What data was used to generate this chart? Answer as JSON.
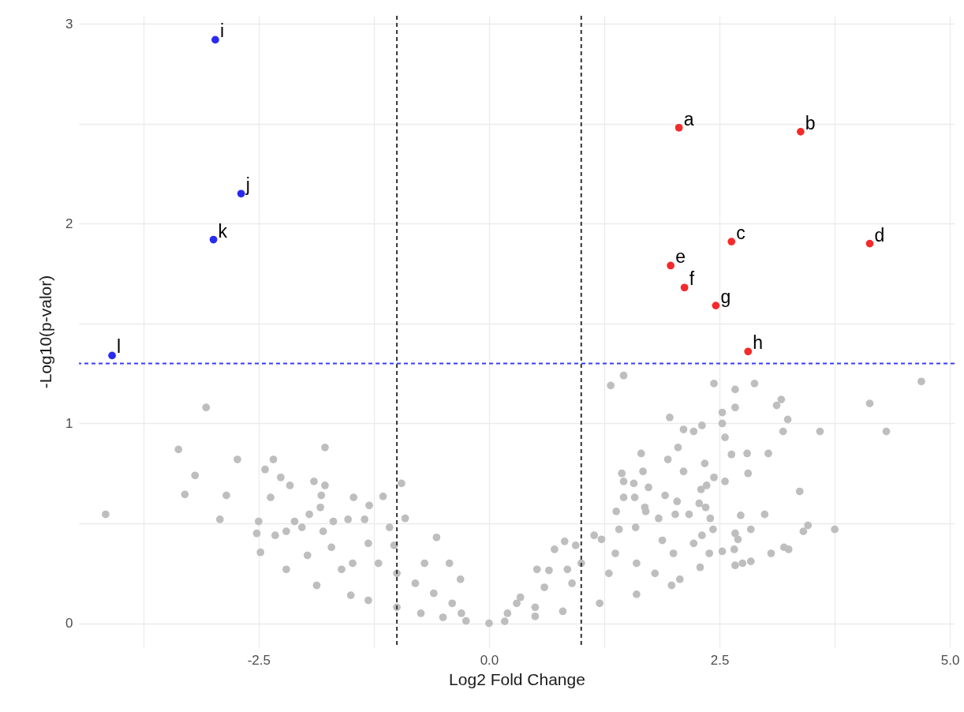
{
  "chart_data": {
    "type": "scatter",
    "xlabel": "Log2 Fold Change",
    "ylabel": "-Log10(p-valor)",
    "xlim": [
      -4.45,
      5.05
    ],
    "ylim": [
      -0.12,
      3.04
    ],
    "xticks": [
      {
        "value": -3.75,
        "label": null
      },
      -2.5,
      {
        "value": -1.25,
        "label": null
      },
      {
        "value": 0,
        "label": "0.0"
      },
      {
        "value": 1.25,
        "label": null
      },
      2.5,
      {
        "value": 3.75,
        "label": null
      },
      {
        "value": 5,
        "label": "5.0"
      }
    ],
    "yticks": [
      0,
      {
        "value": 0.5,
        "label": null
      },
      1,
      {
        "value": 1.5,
        "label": null
      },
      2,
      {
        "value": 2.5,
        "label": null
      },
      3
    ],
    "grid": true,
    "marker": "circle",
    "series": [
      {
        "color": "#bebebe",
        "x": [
          -4.16,
          -3.07,
          -3.37,
          -3.19,
          -3.3,
          -2.73,
          -2.85,
          -2.92,
          -2.34,
          -2.43,
          -2.26,
          -2.16,
          -2.37,
          -1.9,
          -1.78,
          -1.82,
          -1.83,
          -1.78,
          -1.95,
          -2.5,
          -2.52,
          -2.32,
          -2.11,
          -2.03,
          -1.69,
          -1.8,
          -1.47,
          -1.3,
          -1.15,
          -1.53,
          -1.35,
          -0.95,
          -0.91,
          -1.08,
          -0.57,
          -0.43,
          -0.31,
          -2.2,
          -1.97,
          -1.71,
          -1.31,
          -1.48,
          -2.48,
          -2.2,
          -1.87,
          -1.5,
          -1.31,
          -1.0,
          -0.74,
          -0.5,
          -0.25,
          0,
          -1.03,
          -1.6,
          -1.0,
          -0.8,
          -0.6,
          -0.4,
          -1.2,
          -0.7,
          -0.3,
          0.17,
          0.5,
          0.8,
          1.2,
          1.6,
          1.98,
          0.34,
          0.85,
          1.37,
          1.88,
          0.3,
          0.6,
          0.9,
          1.0,
          1.3,
          1.6,
          1.8,
          2.0,
          0.5,
          0.2,
          1.46,
          1.32,
          2.44,
          2.67,
          2.88,
          3.17,
          3.12,
          3.24,
          3.19,
          3.59,
          4.13,
          4.31,
          4.69,
          3.37,
          3.75,
          3.46,
          3.41,
          1.96,
          2.53,
          2.67,
          2.53,
          2.31,
          2.11,
          2.22,
          2.56,
          2.05,
          1.65,
          1.94,
          2.34,
          2.63,
          2.8,
          3.03,
          2.81,
          1.67,
          2.11,
          1.44,
          1.46,
          1.57,
          1.73,
          2.44,
          2.56,
          2.36,
          2.3,
          1.46,
          1.58,
          1.91,
          2.04,
          2.28,
          2.35,
          1.38,
          1.69,
          1.7,
          2.02,
          2.17,
          1.84,
          2.4,
          2.73,
          2.99,
          2.84,
          2.43,
          2.67,
          2.7,
          2.66,
          2.53,
          2.39,
          3.06,
          3.2,
          3.25,
          2.67,
          2.84,
          2.75,
          2.22,
          2.31,
          1.41,
          1.59,
          1.14,
          1.22,
          0.82,
          0.94,
          0.71,
          0.52,
          0.65,
          2.07,
          2.29
        ],
        "values": [
          0.545,
          1.08,
          0.87,
          0.74,
          0.645,
          0.82,
          0.64,
          0.52,
          0.82,
          0.77,
          0.73,
          0.69,
          0.63,
          0.71,
          0.69,
          0.64,
          0.58,
          0.88,
          0.545,
          0.51,
          0.45,
          0.44,
          0.51,
          0.48,
          0.51,
          0.46,
          0.63,
          0.59,
          0.635,
          0.52,
          0.52,
          0.7,
          0.525,
          0.48,
          0.43,
          0.3,
          0.22,
          0.46,
          0.34,
          0.38,
          0.4,
          0.3,
          0.355,
          0.27,
          0.19,
          0.14,
          0.115,
          0.08,
          0.05,
          0.03,
          0.012,
          0,
          0.39,
          0.27,
          0.25,
          0.2,
          0.15,
          0.1,
          0.3,
          0.3,
          0.05,
          0.01,
          0.035,
          0.06,
          0.1,
          0.145,
          0.19,
          0.13,
          0.27,
          0.35,
          0.415,
          0.1,
          0.18,
          0.2,
          0.3,
          0.25,
          0.3,
          0.25,
          0.35,
          0.08,
          0.05,
          1.24,
          1.19,
          1.2,
          1.17,
          1.2,
          1.12,
          1.09,
          1.02,
          0.96,
          0.96,
          1.1,
          0.96,
          1.21,
          0.66,
          0.47,
          0.49,
          0.46,
          1.03,
          1.055,
          1.08,
          1.0,
          0.99,
          0.97,
          0.96,
          0.93,
          0.88,
          0.85,
          0.82,
          0.8,
          0.845,
          0.85,
          0.85,
          0.75,
          0.76,
          0.76,
          0.75,
          0.71,
          0.7,
          0.68,
          0.73,
          0.71,
          0.69,
          0.67,
          0.63,
          0.63,
          0.64,
          0.61,
          0.6,
          0.58,
          0.56,
          0.58,
          0.56,
          0.545,
          0.545,
          0.525,
          0.525,
          0.54,
          0.545,
          0.47,
          0.47,
          0.45,
          0.42,
          0.37,
          0.36,
          0.35,
          0.35,
          0.38,
          0.37,
          0.29,
          0.31,
          0.3,
          0.4,
          0.44,
          0.47,
          0.48,
          0.44,
          0.42,
          0.41,
          0.39,
          0.37,
          0.27,
          0.265,
          0.22,
          0.28
        ]
      },
      {
        "color": "#f52a2a",
        "x": [
          2.06,
          3.38,
          2.63,
          4.13,
          1.97,
          2.12,
          2.46,
          2.81
        ],
        "values": [
          2.48,
          2.46,
          1.91,
          1.9,
          1.79,
          1.68,
          1.59,
          1.36
        ]
      },
      {
        "color": "#2a2aef",
        "x": [
          -2.97,
          -2.69,
          -2.99,
          -4.09
        ],
        "values": [
          2.92,
          2.15,
          1.92,
          1.34
        ]
      }
    ],
    "ref_lines": [
      {
        "axis": "x",
        "value": -1,
        "color": "#333333",
        "line_style": "dashed"
      },
      {
        "axis": "x",
        "value": 1,
        "color": "#333333",
        "line_style": "dashed"
      },
      {
        "axis": "y",
        "value": 1.3,
        "color": "#3a3aff",
        "line_style": "dashed"
      }
    ],
    "annotations": [
      {
        "text": "a",
        "x": 2.06,
        "y": 2.48
      },
      {
        "text": "b",
        "x": 3.38,
        "y": 2.46
      },
      {
        "text": "c",
        "x": 2.63,
        "y": 1.91
      },
      {
        "text": "d",
        "x": 4.13,
        "y": 1.9
      },
      {
        "text": "e",
        "x": 1.97,
        "y": 1.79
      },
      {
        "text": "f",
        "x": 2.12,
        "y": 1.68
      },
      {
        "text": "g",
        "x": 2.46,
        "y": 1.59
      },
      {
        "text": "h",
        "x": 2.81,
        "y": 1.36
      },
      {
        "text": "i",
        "x": -2.97,
        "y": 2.92
      },
      {
        "text": "j",
        "x": -2.69,
        "y": 2.15
      },
      {
        "text": "k",
        "x": -2.99,
        "y": 1.92
      },
      {
        "text": "l",
        "x": -4.09,
        "y": 1.34
      }
    ]
  }
}
